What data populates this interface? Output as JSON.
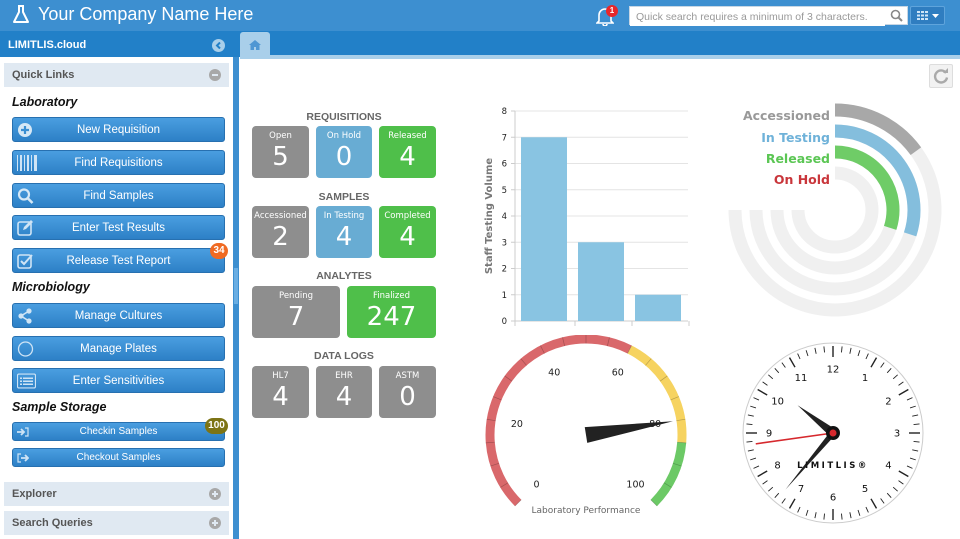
{
  "header": {
    "company_name": "Your Company Name Here",
    "notification_count": "1",
    "search_placeholder": "Quick search requires a minimum of 3 characters."
  },
  "sidebar": {
    "title": "LIMITLIS.cloud",
    "quick_links_label": "Quick Links",
    "sections": {
      "laboratory": "Laboratory",
      "microbiology": "Microbiology",
      "sample_storage": "Sample Storage"
    },
    "buttons": {
      "new_requisition": "New Requisition",
      "find_requisitions": "Find Requisitions",
      "find_samples": "Find Samples",
      "enter_test_results": "Enter Test Results",
      "release_test_report": "Release Test Report",
      "manage_cultures": "Manage Cultures",
      "manage_plates": "Manage Plates",
      "enter_sensitivities": "Enter Sensitivities",
      "checkin_samples": "Checkin Samples",
      "checkout_samples": "Checkout Samples"
    },
    "badges": {
      "release_test_report": "34",
      "checkin_samples": "100"
    },
    "panels": {
      "explorer": "Explorer",
      "search_queries": "Search Queries"
    }
  },
  "dashboard": {
    "requisitions": {
      "title": "REQUISITIONS",
      "open_label": "Open",
      "open_value": "5",
      "onhold_label": "On Hold",
      "onhold_value": "0",
      "released_label": "Released",
      "released_value": "4"
    },
    "samples": {
      "title": "SAMPLES",
      "accessioned_label": "Accessioned",
      "accessioned_value": "2",
      "intesting_label": "In Testing",
      "intesting_value": "4",
      "completed_label": "Completed",
      "completed_value": "4"
    },
    "analytes": {
      "title": "ANALYTES",
      "pending_label": "Pending",
      "pending_value": "7",
      "finalized_label": "Finalized",
      "finalized_value": "247"
    },
    "datalogs": {
      "title": "DATA LOGS",
      "hl7_label": "HL7",
      "hl7_value": "4",
      "ehr_label": "EHR",
      "ehr_value": "4",
      "astm_label": "ASTM",
      "astm_value": "0"
    },
    "radial": {
      "accessioned": "Accessioned",
      "in_testing": "In Testing",
      "released": "Released",
      "on_hold": "On Hold"
    },
    "gauge": {
      "title": "Laboratory Performance"
    },
    "clock": {
      "brand": "LIMITLIS®"
    }
  },
  "colors": {
    "header_blue": "#3d8fd0",
    "tile_gray": "#8e8e8e",
    "tile_blue": "#68acd3",
    "tile_green": "#4fbf4a",
    "bar_blue": "#89c4e2",
    "badge_orange": "#f06a22",
    "badge_olive": "#7d7415"
  },
  "chart_data": [
    {
      "type": "bar",
      "title": "",
      "xlabel": "",
      "ylabel": "Staff Testing Volume",
      "categories": [
        "",
        "",
        ""
      ],
      "values": [
        7,
        3,
        1
      ],
      "ylim": [
        0,
        8
      ],
      "yticks": [
        0,
        1,
        2,
        3,
        4,
        5,
        6,
        7,
        8
      ],
      "grid": true
    },
    {
      "type": "radial-bar",
      "categories": [
        "Accessioned",
        "In Testing",
        "Released",
        "On Hold"
      ],
      "values": [
        2,
        4,
        4,
        0
      ],
      "max": 10,
      "colors": [
        "#a8a8a8",
        "#84bedd",
        "#6fcc67",
        "#c9363b"
      ]
    },
    {
      "type": "gauge",
      "title": "Laboratory Performance",
      "min": 0,
      "max": 100,
      "ticks": [
        0,
        20,
        40,
        60,
        80,
        100
      ],
      "value": 80,
      "bands": [
        {
          "from": 0,
          "to": 60,
          "color": "#d9686b"
        },
        {
          "from": 60,
          "to": 85,
          "color": "#f6d360"
        },
        {
          "from": 85,
          "to": 100,
          "color": "#6cc966"
        }
      ]
    }
  ]
}
